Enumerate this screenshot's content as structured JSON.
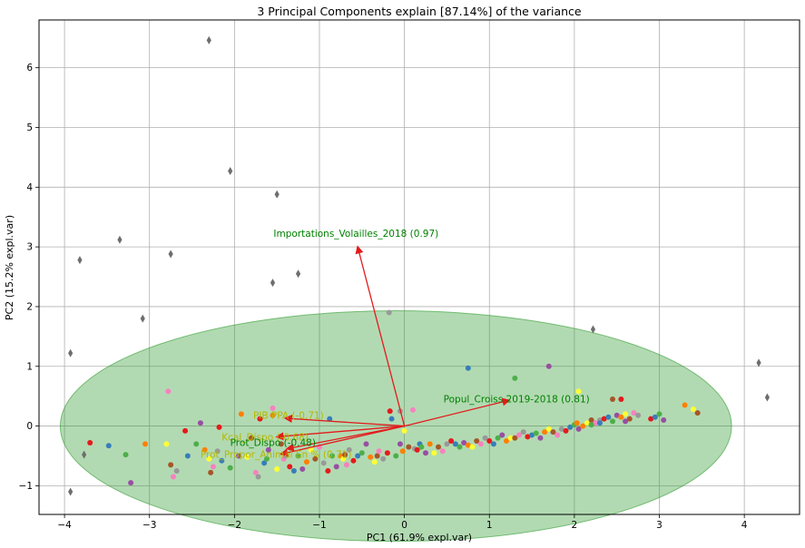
{
  "chart_data": {
    "type": "scatter",
    "title": "3 Principal Components explain [87.14%] of the variance",
    "xlabel": "PC1 (61.9% expl.var)",
    "ylabel": "PC2 (15.2% expl.var)",
    "xlim": [
      -4.3,
      4.65
    ],
    "ylim": [
      -1.48,
      6.8
    ],
    "xticks": [
      -4,
      -3,
      -2,
      -1,
      0,
      1,
      2,
      3,
      4
    ],
    "xtick_labels": [
      "−4",
      "−3",
      "−2",
      "−1",
      "0",
      "1",
      "2",
      "3",
      "4"
    ],
    "yticks": [
      -1,
      0,
      1,
      2,
      3,
      4,
      5,
      6
    ],
    "ytick_labels": [
      "−1",
      "0",
      "1",
      "2",
      "3",
      "4",
      "5",
      "6"
    ],
    "grid": true,
    "ellipse": {
      "cx": -0.1,
      "cy": 0.0,
      "rx": 3.95,
      "ry": 1.93,
      "color": "#2e9b2e",
      "opacity": 0.37
    },
    "vectors": [
      {
        "label": "Importations_Volailles_2018 (0.97)",
        "x": -0.55,
        "y": 3.0,
        "label_x": -1.54,
        "label_y": 3.17,
        "color": "#008000"
      },
      {
        "label": "Popul_Croiss 2019-2018 (0.81)",
        "x": 1.23,
        "y": 0.43,
        "label_x": 0.46,
        "label_y": 0.4,
        "color": "#008000"
      },
      {
        "label": "PIB PPA (-0.71)",
        "x": -1.4,
        "y": 0.13,
        "label_x": -1.78,
        "label_y": 0.12,
        "color": "#b5b800"
      },
      {
        "label": "Kcal_Dispo (-0.68)",
        "x": -1.5,
        "y": -0.18,
        "label_x": -2.15,
        "label_y": -0.24,
        "color": "#b5b800"
      },
      {
        "label": "Prot_Dispo (-0.48)",
        "x": -1.38,
        "y": -0.38,
        "label_x": -2.05,
        "label_y": -0.33,
        "color": "#008000"
      },
      {
        "label": "Prot_Propor_Animal En % (0.71)",
        "x": -1.45,
        "y": -0.47,
        "label_x": -2.4,
        "label_y": -0.53,
        "color": "#b5b800"
      }
    ],
    "outliers": {
      "marker": "diamond",
      "color": "#6e6e6e",
      "x": [
        -2.3,
        -2.05,
        -1.5,
        -3.35,
        -2.75,
        -3.82,
        -1.25,
        -1.55,
        -3.08,
        -3.93,
        2.22,
        4.17,
        4.27,
        -3.77,
        -3.93
      ],
      "y": [
        6.46,
        4.27,
        3.88,
        3.12,
        2.88,
        2.78,
        2.55,
        2.4,
        1.8,
        1.22,
        1.62,
        1.06,
        0.48,
        -0.48,
        -1.1
      ]
    },
    "points": {
      "palette": [
        "#e41a1c",
        "#377eb8",
        "#4daf4a",
        "#984ea3",
        "#ff7f00",
        "#ffff33",
        "#a65628",
        "#f781bf",
        "#999999"
      ],
      "x": [
        -3.7,
        -3.48,
        -3.28,
        -3.22,
        -3.05,
        -2.8,
        -2.75,
        -2.72,
        -2.68,
        -2.58,
        -2.55,
        -2.45,
        -2.4,
        -2.35,
        -2.3,
        -2.28,
        -2.25,
        -2.2,
        -2.18,
        -2.15,
        -2.05,
        -1.95,
        -1.92,
        -1.85,
        -1.8,
        -1.75,
        -1.72,
        -1.7,
        -1.65,
        -1.62,
        -1.6,
        -1.55,
        -1.5,
        -1.45,
        -1.42,
        -1.4,
        -1.35,
        -1.3,
        -1.25,
        -1.2,
        -1.15,
        -1.1,
        -1.05,
        -1.0,
        -0.95,
        -0.9,
        -0.88,
        -0.85,
        -0.8,
        -0.75,
        -0.72,
        -0.7,
        -0.68,
        -0.65,
        -0.6,
        -0.55,
        -0.5,
        -0.45,
        -0.4,
        -0.35,
        -0.32,
        -0.3,
        -0.25,
        -0.2,
        -0.15,
        -0.1,
        -0.05,
        -0.02,
        0.0,
        0.05,
        0.1,
        0.12,
        0.15,
        0.18,
        0.2,
        0.25,
        0.3,
        0.35,
        0.4,
        0.45,
        0.5,
        0.55,
        0.6,
        0.65,
        0.7,
        0.75,
        0.8,
        0.85,
        0.9,
        0.95,
        1.0,
        1.05,
        1.1,
        1.15,
        1.2,
        1.25,
        1.3,
        1.35,
        1.4,
        1.45,
        1.5,
        1.55,
        1.6,
        1.65,
        1.7,
        1.75,
        1.8,
        1.85,
        1.9,
        1.95,
        2.0,
        2.05,
        2.1,
        2.15,
        2.2,
        2.25,
        2.3,
        2.35,
        2.4,
        2.45,
        2.5,
        2.55,
        2.6,
        2.65,
        2.7,
        2.75,
        2.9,
        2.95,
        3.0,
        3.05,
        3.3,
        3.4,
        3.45,
        -1.55,
        -0.18,
        -0.17,
        0.75,
        1.3,
        1.7,
        2.03,
        2.05,
        2.45,
        -2.78,
        -0.05,
        2.55,
        2.3,
        2.2,
        2.6
      ],
      "y": [
        -0.28,
        -0.33,
        -0.48,
        -0.95,
        -0.3,
        -0.3,
        -0.65,
        -0.85,
        -0.75,
        -0.08,
        -0.5,
        -0.3,
        0.05,
        -0.4,
        -0.55,
        -0.78,
        -0.68,
        -0.42,
        -0.02,
        -0.58,
        -0.7,
        -0.5,
        0.2,
        -0.52,
        -0.2,
        -0.78,
        -0.85,
        0.12,
        -0.62,
        -0.55,
        -0.4,
        0.18,
        -0.72,
        -0.3,
        -0.55,
        -0.5,
        -0.68,
        -0.75,
        -0.5,
        -0.72,
        -0.6,
        -0.4,
        -0.55,
        -0.35,
        -0.62,
        -0.75,
        0.12,
        -0.5,
        -0.68,
        -0.5,
        -0.55,
        -0.48,
        -0.65,
        -0.4,
        -0.58,
        -0.5,
        -0.45,
        -0.3,
        -0.52,
        -0.6,
        -0.5,
        -0.42,
        -0.55,
        -0.45,
        0.12,
        -0.5,
        -0.3,
        -0.42,
        -0.08,
        -0.35,
        0.27,
        -0.38,
        -0.4,
        -0.3,
        -0.35,
        -0.45,
        -0.3,
        -0.45,
        -0.35,
        -0.42,
        -0.3,
        -0.25,
        -0.3,
        -0.35,
        -0.28,
        -0.32,
        -0.35,
        -0.25,
        -0.3,
        -0.2,
        -0.25,
        -0.3,
        -0.2,
        -0.15,
        -0.25,
        -0.2,
        -0.2,
        -0.15,
        -0.1,
        -0.18,
        -0.15,
        -0.12,
        -0.2,
        -0.1,
        -0.05,
        -0.1,
        -0.15,
        -0.05,
        -0.08,
        -0.02,
        0.02,
        -0.05,
        0.0,
        0.05,
        0.1,
        0.05,
        0.1,
        0.12,
        0.15,
        0.08,
        0.18,
        0.15,
        0.2,
        0.12,
        0.22,
        0.18,
        0.12,
        0.15,
        0.2,
        0.1,
        0.35,
        0.28,
        0.22,
        0.3,
        1.9,
        0.25,
        0.97,
        0.8,
        1.0,
        0.05,
        0.58,
        0.45,
        0.58,
        0.25,
        0.45,
        0.05,
        0.02,
        0.08
      ]
    }
  }
}
